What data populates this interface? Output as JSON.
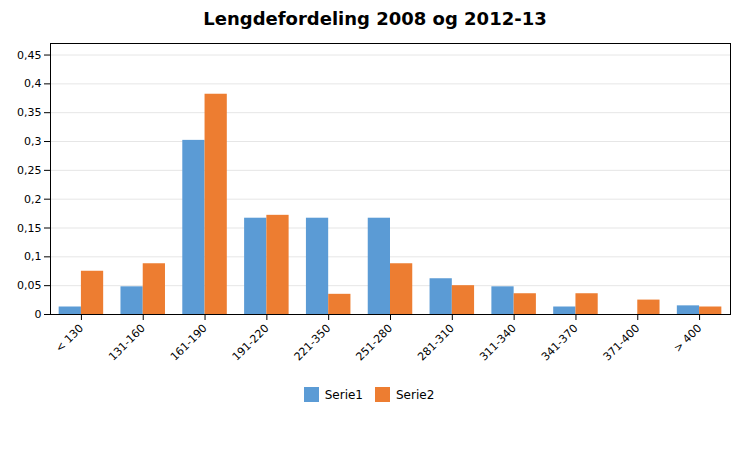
{
  "chart_data": {
    "type": "bar",
    "title": "Lengdefordeling 2008 og 2012-13",
    "categories": [
      "< 130",
      "131-160",
      "161-190",
      "191-220",
      "221-350",
      "251-280",
      "281-310",
      "311-340",
      "341-370",
      "371-400",
      "> 400"
    ],
    "series": [
      {
        "name": "Serie1",
        "color": "#5B9BD5",
        "values": [
          0.013,
          0.048,
          0.302,
          0.167,
          0.167,
          0.167,
          0.062,
          0.048,
          0.013,
          0.0,
          0.015
        ]
      },
      {
        "name": "Serie2",
        "color": "#ED7D31",
        "values": [
          0.075,
          0.088,
          0.382,
          0.172,
          0.035,
          0.088,
          0.05,
          0.036,
          0.036,
          0.025,
          0.013
        ]
      }
    ],
    "ylim": [
      0,
      0.47
    ],
    "yticks": [
      0,
      {
        "value": 0.05,
        "label": "0,05"
      },
      {
        "value": 0.1,
        "label": "0,1"
      },
      {
        "value": 0.15,
        "label": "0,15"
      },
      {
        "value": 0.2,
        "label": "0,2"
      },
      {
        "value": 0.25,
        "label": "0,25"
      },
      {
        "value": 0.3,
        "label": "0,3"
      },
      {
        "value": 0.35,
        "label": "0,35"
      },
      {
        "value": 0.4,
        "label": "0,4"
      },
      {
        "value": 0.45,
        "label": "0,45"
      }
    ],
    "grid": true,
    "legend": "bottom"
  }
}
